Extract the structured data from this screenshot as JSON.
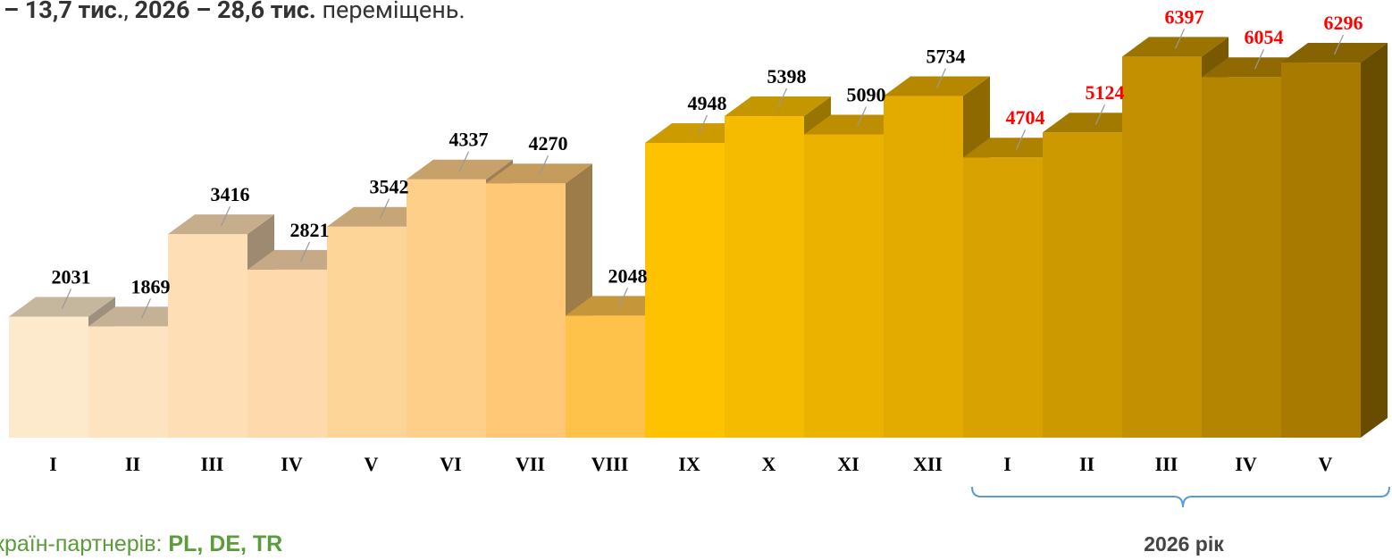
{
  "header_text": [
    {
      "text": "– 13,7 тис.",
      "bold": true
    },
    {
      "text": ", ",
      "bold": false
    },
    {
      "text": "2026 – 28,6 тис.",
      "bold": true
    },
    {
      "text": " переміщень.",
      "bold": false
    }
  ],
  "chart_data": {
    "type": "bar",
    "categories": [
      "I",
      "II",
      "III",
      "IV",
      "V",
      "VI",
      "VII",
      "VIII",
      "IX",
      "X",
      "XI",
      "XII",
      "I",
      "II",
      "III",
      "IV",
      "V"
    ],
    "values": [
      2031,
      1869,
      3416,
      2821,
      3542,
      4337,
      4270,
      2048,
      4948,
      5398,
      5090,
      5734,
      4704,
      5124,
      6397,
      6054,
      6296
    ],
    "colors": [
      "#fde9cb",
      "#fde3c0",
      "#fedfb5",
      "#fed9ac",
      "#fed598",
      "#fecf88",
      "#fec877",
      "#fec24a",
      "#fec200",
      "#f5bb00",
      "#ecb200",
      "#e3aa00",
      "#d8a200",
      "#cc9900",
      "#c29000",
      "#b48500",
      "#a87b00"
    ],
    "label_colors": [
      "#000000",
      "#000000",
      "#000000",
      "#000000",
      "#000000",
      "#000000",
      "#000000",
      "#000000",
      "#000000",
      "#000000",
      "#000000",
      "#000000",
      "#ff0000",
      "#ff0000",
      "#ff0000",
      "#ff0000",
      "#ff0000"
    ],
    "group_label": "2026 рік"
  },
  "footer_text": [
    {
      "text": "країн-партнерів: ",
      "bold": false
    },
    {
      "text": "PL, DE, TR",
      "bold": true
    }
  ]
}
